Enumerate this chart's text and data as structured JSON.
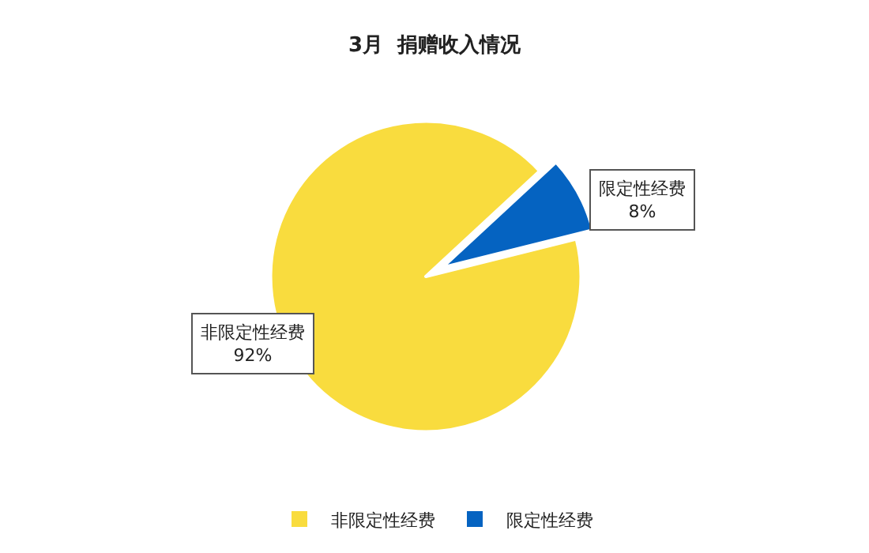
{
  "chart_data": {
    "type": "pie",
    "title": "3月  捐赠收入情况",
    "categories": [
      "非限定性经费",
      "限定性经费"
    ],
    "values": [
      92,
      8
    ],
    "value_labels": [
      "92%",
      "8%"
    ],
    "colors": [
      "#f9dc3e",
      "#0563c1"
    ],
    "legend": "bottom"
  }
}
